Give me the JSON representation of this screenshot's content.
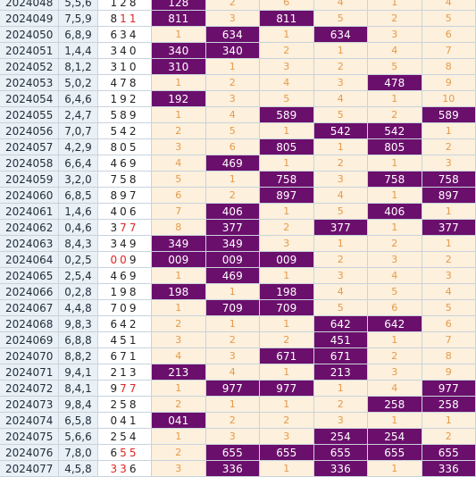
{
  "colors": {
    "hit_bg": "#6b0f6c",
    "miss_bg": "#fdf0dc",
    "miss_text": "#e59a4a",
    "label_bg": "#e9f0f6",
    "red_digit": "#e02626"
  },
  "rows": [
    {
      "period": "2024048",
      "sum": "5,5,6",
      "draw": [
        [
          "1",
          0
        ],
        [
          "2",
          0
        ],
        [
          "8",
          0
        ]
      ],
      "cells": [
        [
          "128",
          1
        ],
        [
          "2",
          0
        ],
        [
          "6",
          0
        ],
        [
          "4",
          0
        ],
        [
          "1",
          0
        ],
        [
          "4",
          0
        ]
      ]
    },
    {
      "period": "2024049",
      "sum": "7,5,9",
      "draw": [
        [
          "8",
          0
        ],
        [
          "1",
          1
        ],
        [
          "1",
          1
        ]
      ],
      "cells": [
        [
          "811",
          1
        ],
        [
          "3",
          0
        ],
        [
          "811",
          1
        ],
        [
          "5",
          0
        ],
        [
          "2",
          0
        ],
        [
          "5",
          0
        ]
      ]
    },
    {
      "period": "2024050",
      "sum": "6,8,9",
      "draw": [
        [
          "6",
          0
        ],
        [
          "3",
          0
        ],
        [
          "4",
          0
        ]
      ],
      "cells": [
        [
          "1",
          0
        ],
        [
          "634",
          1
        ],
        [
          "1",
          0
        ],
        [
          "634",
          1
        ],
        [
          "3",
          0
        ],
        [
          "6",
          0
        ]
      ]
    },
    {
      "period": "2024051",
      "sum": "1,4,4",
      "draw": [
        [
          "3",
          0
        ],
        [
          "4",
          0
        ],
        [
          "0",
          0
        ]
      ],
      "cells": [
        [
          "340",
          1
        ],
        [
          "340",
          1
        ],
        [
          "2",
          0
        ],
        [
          "1",
          0
        ],
        [
          "4",
          0
        ],
        [
          "7",
          0
        ]
      ]
    },
    {
      "period": "2024052",
      "sum": "8,1,2",
      "draw": [
        [
          "3",
          0
        ],
        [
          "1",
          0
        ],
        [
          "0",
          0
        ]
      ],
      "cells": [
        [
          "310",
          1
        ],
        [
          "1",
          0
        ],
        [
          "3",
          0
        ],
        [
          "2",
          0
        ],
        [
          "5",
          0
        ],
        [
          "8",
          0
        ]
      ]
    },
    {
      "period": "2024053",
      "sum": "5,0,2",
      "draw": [
        [
          "4",
          0
        ],
        [
          "7",
          0
        ],
        [
          "8",
          0
        ]
      ],
      "cells": [
        [
          "1",
          0
        ],
        [
          "2",
          0
        ],
        [
          "4",
          0
        ],
        [
          "3",
          0
        ],
        [
          "478",
          1
        ],
        [
          "9",
          0
        ]
      ]
    },
    {
      "period": "2024054",
      "sum": "6,4,6",
      "draw": [
        [
          "1",
          0
        ],
        [
          "9",
          0
        ],
        [
          "2",
          0
        ]
      ],
      "cells": [
        [
          "192",
          1
        ],
        [
          "3",
          0
        ],
        [
          "5",
          0
        ],
        [
          "4",
          0
        ],
        [
          "1",
          0
        ],
        [
          "10",
          0
        ]
      ]
    },
    {
      "period": "2024055",
      "sum": "2,4,7",
      "draw": [
        [
          "5",
          0
        ],
        [
          "8",
          0
        ],
        [
          "9",
          0
        ]
      ],
      "cells": [
        [
          "1",
          0
        ],
        [
          "4",
          0
        ],
        [
          "589",
          1
        ],
        [
          "5",
          0
        ],
        [
          "2",
          0
        ],
        [
          "589",
          1
        ]
      ]
    },
    {
      "period": "2024056",
      "sum": "7,0,7",
      "draw": [
        [
          "5",
          0
        ],
        [
          "4",
          0
        ],
        [
          "2",
          0
        ]
      ],
      "cells": [
        [
          "2",
          0
        ],
        [
          "5",
          0
        ],
        [
          "1",
          0
        ],
        [
          "542",
          1
        ],
        [
          "542",
          1
        ],
        [
          "1",
          0
        ]
      ]
    },
    {
      "period": "2024057",
      "sum": "4,2,9",
      "draw": [
        [
          "8",
          0
        ],
        [
          "0",
          0
        ],
        [
          "5",
          0
        ]
      ],
      "cells": [
        [
          "3",
          0
        ],
        [
          "6",
          0
        ],
        [
          "805",
          1
        ],
        [
          "1",
          0
        ],
        [
          "805",
          1
        ],
        [
          "2",
          0
        ]
      ]
    },
    {
      "period": "2024058",
      "sum": "6,6,4",
      "draw": [
        [
          "4",
          0
        ],
        [
          "6",
          0
        ],
        [
          "9",
          0
        ]
      ],
      "cells": [
        [
          "4",
          0
        ],
        [
          "469",
          1
        ],
        [
          "1",
          0
        ],
        [
          "2",
          0
        ],
        [
          "1",
          0
        ],
        [
          "3",
          0
        ]
      ]
    },
    {
      "period": "2024059",
      "sum": "3,2,0",
      "draw": [
        [
          "7",
          0
        ],
        [
          "5",
          0
        ],
        [
          "8",
          0
        ]
      ],
      "cells": [
        [
          "5",
          0
        ],
        [
          "1",
          0
        ],
        [
          "758",
          1
        ],
        [
          "3",
          0
        ],
        [
          "758",
          1
        ],
        [
          "758",
          1
        ]
      ]
    },
    {
      "period": "2024060",
      "sum": "6,8,5",
      "draw": [
        [
          "8",
          0
        ],
        [
          "9",
          0
        ],
        [
          "7",
          0
        ]
      ],
      "cells": [
        [
          "6",
          0
        ],
        [
          "2",
          0
        ],
        [
          "897",
          1
        ],
        [
          "4",
          0
        ],
        [
          "1",
          0
        ],
        [
          "897",
          1
        ]
      ]
    },
    {
      "period": "2024061",
      "sum": "1,4,6",
      "draw": [
        [
          "4",
          0
        ],
        [
          "0",
          0
        ],
        [
          "6",
          0
        ]
      ],
      "cells": [
        [
          "7",
          0
        ],
        [
          "406",
          1
        ],
        [
          "1",
          0
        ],
        [
          "5",
          0
        ],
        [
          "406",
          1
        ],
        [
          "1",
          0
        ]
      ]
    },
    {
      "period": "2024062",
      "sum": "0,4,6",
      "draw": [
        [
          "3",
          0
        ],
        [
          "7",
          1
        ],
        [
          "7",
          1
        ]
      ],
      "cells": [
        [
          "8",
          0
        ],
        [
          "377",
          1
        ],
        [
          "2",
          0
        ],
        [
          "377",
          1
        ],
        [
          "1",
          0
        ],
        [
          "377",
          1
        ]
      ]
    },
    {
      "period": "2024063",
      "sum": "8,4,3",
      "draw": [
        [
          "3",
          0
        ],
        [
          "4",
          0
        ],
        [
          "9",
          0
        ]
      ],
      "cells": [
        [
          "349",
          1
        ],
        [
          "349",
          1
        ],
        [
          "3",
          0
        ],
        [
          "1",
          0
        ],
        [
          "2",
          0
        ],
        [
          "1",
          0
        ]
      ]
    },
    {
      "period": "2024064",
      "sum": "0,2,5",
      "draw": [
        [
          "0",
          1
        ],
        [
          "0",
          1
        ],
        [
          "9",
          0
        ]
      ],
      "cells": [
        [
          "009",
          1
        ],
        [
          "009",
          1
        ],
        [
          "009",
          1
        ],
        [
          "2",
          0
        ],
        [
          "3",
          0
        ],
        [
          "2",
          0
        ]
      ]
    },
    {
      "period": "2024065",
      "sum": "2,5,4",
      "draw": [
        [
          "4",
          0
        ],
        [
          "6",
          0
        ],
        [
          "9",
          0
        ]
      ],
      "cells": [
        [
          "1",
          0
        ],
        [
          "469",
          1
        ],
        [
          "1",
          0
        ],
        [
          "3",
          0
        ],
        [
          "4",
          0
        ],
        [
          "3",
          0
        ]
      ]
    },
    {
      "period": "2024066",
      "sum": "0,2,8",
      "draw": [
        [
          "1",
          0
        ],
        [
          "9",
          0
        ],
        [
          "8",
          0
        ]
      ],
      "cells": [
        [
          "198",
          1
        ],
        [
          "1",
          0
        ],
        [
          "198",
          1
        ],
        [
          "4",
          0
        ],
        [
          "5",
          0
        ],
        [
          "4",
          0
        ]
      ]
    },
    {
      "period": "2024067",
      "sum": "4,4,8",
      "draw": [
        [
          "7",
          0
        ],
        [
          "0",
          0
        ],
        [
          "9",
          0
        ]
      ],
      "cells": [
        [
          "1",
          0
        ],
        [
          "709",
          1
        ],
        [
          "709",
          1
        ],
        [
          "5",
          0
        ],
        [
          "6",
          0
        ],
        [
          "5",
          0
        ]
      ]
    },
    {
      "period": "2024068",
      "sum": "9,8,3",
      "draw": [
        [
          "6",
          0
        ],
        [
          "4",
          0
        ],
        [
          "2",
          0
        ]
      ],
      "cells": [
        [
          "2",
          0
        ],
        [
          "1",
          0
        ],
        [
          "1",
          0
        ],
        [
          "642",
          1
        ],
        [
          "642",
          1
        ],
        [
          "6",
          0
        ]
      ]
    },
    {
      "period": "2024069",
      "sum": "6,8,8",
      "draw": [
        [
          "4",
          0
        ],
        [
          "5",
          0
        ],
        [
          "1",
          0
        ]
      ],
      "cells": [
        [
          "3",
          0
        ],
        [
          "2",
          0
        ],
        [
          "2",
          0
        ],
        [
          "451",
          1
        ],
        [
          "1",
          0
        ],
        [
          "7",
          0
        ]
      ]
    },
    {
      "period": "2024070",
      "sum": "8,8,2",
      "draw": [
        [
          "6",
          0
        ],
        [
          "7",
          0
        ],
        [
          "1",
          0
        ]
      ],
      "cells": [
        [
          "4",
          0
        ],
        [
          "3",
          0
        ],
        [
          "671",
          1
        ],
        [
          "671",
          1
        ],
        [
          "2",
          0
        ],
        [
          "8",
          0
        ]
      ]
    },
    {
      "period": "2024071",
      "sum": "9,4,1",
      "draw": [
        [
          "2",
          0
        ],
        [
          "1",
          0
        ],
        [
          "3",
          0
        ]
      ],
      "cells": [
        [
          "213",
          1
        ],
        [
          "4",
          0
        ],
        [
          "1",
          0
        ],
        [
          "213",
          1
        ],
        [
          "3",
          0
        ],
        [
          "9",
          0
        ]
      ]
    },
    {
      "period": "2024072",
      "sum": "8,4,1",
      "draw": [
        [
          "9",
          0
        ],
        [
          "7",
          1
        ],
        [
          "7",
          1
        ]
      ],
      "cells": [
        [
          "1",
          0
        ],
        [
          "977",
          1
        ],
        [
          "977",
          1
        ],
        [
          "1",
          0
        ],
        [
          "4",
          0
        ],
        [
          "977",
          1
        ]
      ]
    },
    {
      "period": "2024073",
      "sum": "9,8,4",
      "draw": [
        [
          "2",
          0
        ],
        [
          "5",
          0
        ],
        [
          "8",
          0
        ]
      ],
      "cells": [
        [
          "2",
          0
        ],
        [
          "1",
          0
        ],
        [
          "1",
          0
        ],
        [
          "2",
          0
        ],
        [
          "258",
          1
        ],
        [
          "258",
          1
        ]
      ]
    },
    {
      "period": "2024074",
      "sum": "6,5,8",
      "draw": [
        [
          "0",
          0
        ],
        [
          "4",
          0
        ],
        [
          "1",
          0
        ]
      ],
      "cells": [
        [
          "041",
          1
        ],
        [
          "2",
          0
        ],
        [
          "2",
          0
        ],
        [
          "3",
          0
        ],
        [
          "1",
          0
        ],
        [
          "1",
          0
        ]
      ]
    },
    {
      "period": "2024075",
      "sum": "5,6,6",
      "draw": [
        [
          "2",
          0
        ],
        [
          "5",
          0
        ],
        [
          "4",
          0
        ]
      ],
      "cells": [
        [
          "1",
          0
        ],
        [
          "3",
          0
        ],
        [
          "3",
          0
        ],
        [
          "254",
          1
        ],
        [
          "254",
          1
        ],
        [
          "2",
          0
        ]
      ]
    },
    {
      "period": "2024076",
      "sum": "7,8,0",
      "draw": [
        [
          "6",
          0
        ],
        [
          "5",
          1
        ],
        [
          "5",
          1
        ]
      ],
      "cells": [
        [
          "2",
          0
        ],
        [
          "655",
          1
        ],
        [
          "655",
          1
        ],
        [
          "655",
          1
        ],
        [
          "655",
          1
        ],
        [
          "655",
          1
        ]
      ]
    },
    {
      "period": "2024077",
      "sum": "4,5,8",
      "draw": [
        [
          "3",
          1
        ],
        [
          "3",
          1
        ],
        [
          "6",
          0
        ]
      ],
      "cells": [
        [
          "3",
          0
        ],
        [
          "336",
          1
        ],
        [
          "1",
          0
        ],
        [
          "336",
          1
        ],
        [
          "1",
          0
        ],
        [
          "336",
          1
        ]
      ]
    }
  ]
}
